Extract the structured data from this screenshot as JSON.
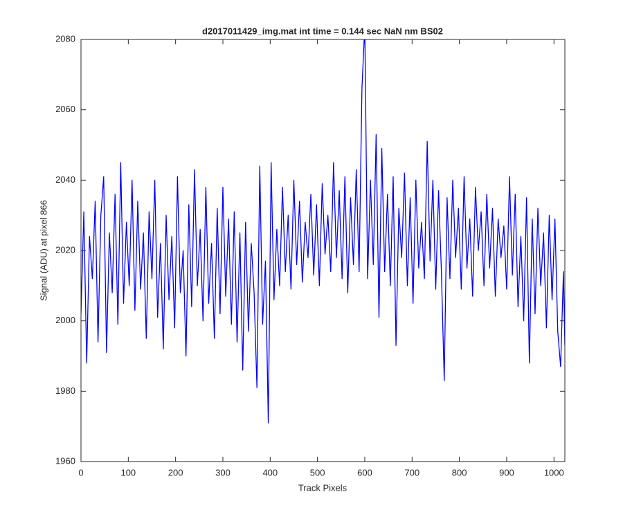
{
  "chart_data": {
    "type": "line",
    "title": "d2017011429_img.mat int time = 0.144 sec  NaN nm BS02",
    "x_label": "Track Pixels",
    "y_label": "Signal (ADU) at pixel 866",
    "x": [
      0,
      6,
      12,
      18,
      24,
      30,
      36,
      42,
      48,
      54,
      60,
      66,
      72,
      78,
      84,
      90,
      96,
      102,
      108,
      114,
      120,
      126,
      132,
      138,
      144,
      150,
      156,
      162,
      168,
      174,
      180,
      186,
      192,
      198,
      204,
      210,
      216,
      222,
      228,
      234,
      240,
      246,
      252,
      258,
      264,
      270,
      276,
      282,
      288,
      294,
      300,
      306,
      312,
      318,
      324,
      330,
      336,
      342,
      348,
      354,
      360,
      366,
      372,
      378,
      384,
      390,
      396,
      402,
      408,
      414,
      420,
      426,
      432,
      438,
      444,
      450,
      456,
      462,
      468,
      474,
      480,
      486,
      492,
      498,
      504,
      510,
      516,
      522,
      528,
      534,
      540,
      546,
      552,
      558,
      564,
      570,
      576,
      582,
      588,
      594,
      600,
      606,
      612,
      618,
      624,
      630,
      636,
      642,
      648,
      654,
      660,
      666,
      672,
      678,
      684,
      690,
      696,
      702,
      708,
      714,
      720,
      726,
      732,
      738,
      744,
      750,
      756,
      762,
      768,
      774,
      780,
      786,
      792,
      798,
      804,
      810,
      816,
      822,
      828,
      834,
      840,
      846,
      852,
      858,
      864,
      870,
      876,
      882,
      888,
      894,
      900,
      906,
      912,
      918,
      924,
      930,
      936,
      942,
      948,
      954,
      960,
      966,
      972,
      978,
      984,
      990,
      996,
      1002,
      1008,
      1014,
      1020,
      1023
    ],
    "series": [
      {
        "color": "#0000ff",
        "values": [
          2002,
          2031,
          1988,
          2024,
          2012,
          2034,
          1994,
          2030,
          2041,
          1991,
          2025,
          2008,
          2036,
          1999,
          2045,
          2005,
          2028,
          2010,
          2040,
          2003,
          2034,
          2009,
          2025,
          1995,
          2031,
          2012,
          2040,
          2001,
          2022,
          1992,
          2030,
          2006,
          2024,
          1998,
          2041,
          2008,
          2020,
          1990,
          2033,
          2004,
          2043,
          2010,
          2026,
          2000,
          2038,
          2005,
          2022,
          1995,
          2032,
          2002,
          2038,
          2007,
          2029,
          1999,
          2031,
          1994,
          2025,
          1986,
          2028,
          1997,
          2022,
          2008,
          1981,
          2044,
          1999,
          2017,
          1971,
          2045,
          2006,
          2026,
          2010,
          2038,
          2014,
          2030,
          2009,
          2040,
          2016,
          2034,
          2011,
          2028,
          2018,
          2036,
          2013,
          2033,
          2010,
          2039,
          2019,
          2030,
          2014,
          2045,
          2018,
          2037,
          2012,
          2041,
          2008,
          2035,
          2016,
          2043,
          2014,
          2066,
          2084,
          2012,
          2040,
          2016,
          2053,
          2001,
          2049,
          2014,
          2036,
          2010,
          2041,
          1993,
          2032,
          2018,
          2042,
          2010,
          2035,
          2005,
          2040,
          2015,
          2028,
          2012,
          2051,
          2017,
          2040,
          2009,
          2037,
          2014,
          1983,
          2035,
          2012,
          2040,
          2018,
          2032,
          2009,
          2041,
          2015,
          2029,
          2007,
          2038,
          2020,
          2031,
          2010,
          2036,
          2015,
          2032,
          2007,
          2029,
          2018,
          2027,
          2009,
          2041,
          2013,
          2036,
          2004,
          2024,
          2000,
          2035,
          1988,
          2029,
          2002,
          2032,
          2010,
          2025,
          1998,
          2030,
          2006,
          2029,
          1997,
          1987,
          2014,
          1993
        ]
      }
    ],
    "xlim": [
      0,
      1023
    ],
    "ylim": [
      1960,
      2080
    ],
    "xticks": [
      0,
      100,
      200,
      300,
      400,
      500,
      600,
      700,
      800,
      900,
      1000
    ],
    "yticks": [
      1960,
      1980,
      2000,
      2020,
      2040,
      2060,
      2080
    ]
  }
}
